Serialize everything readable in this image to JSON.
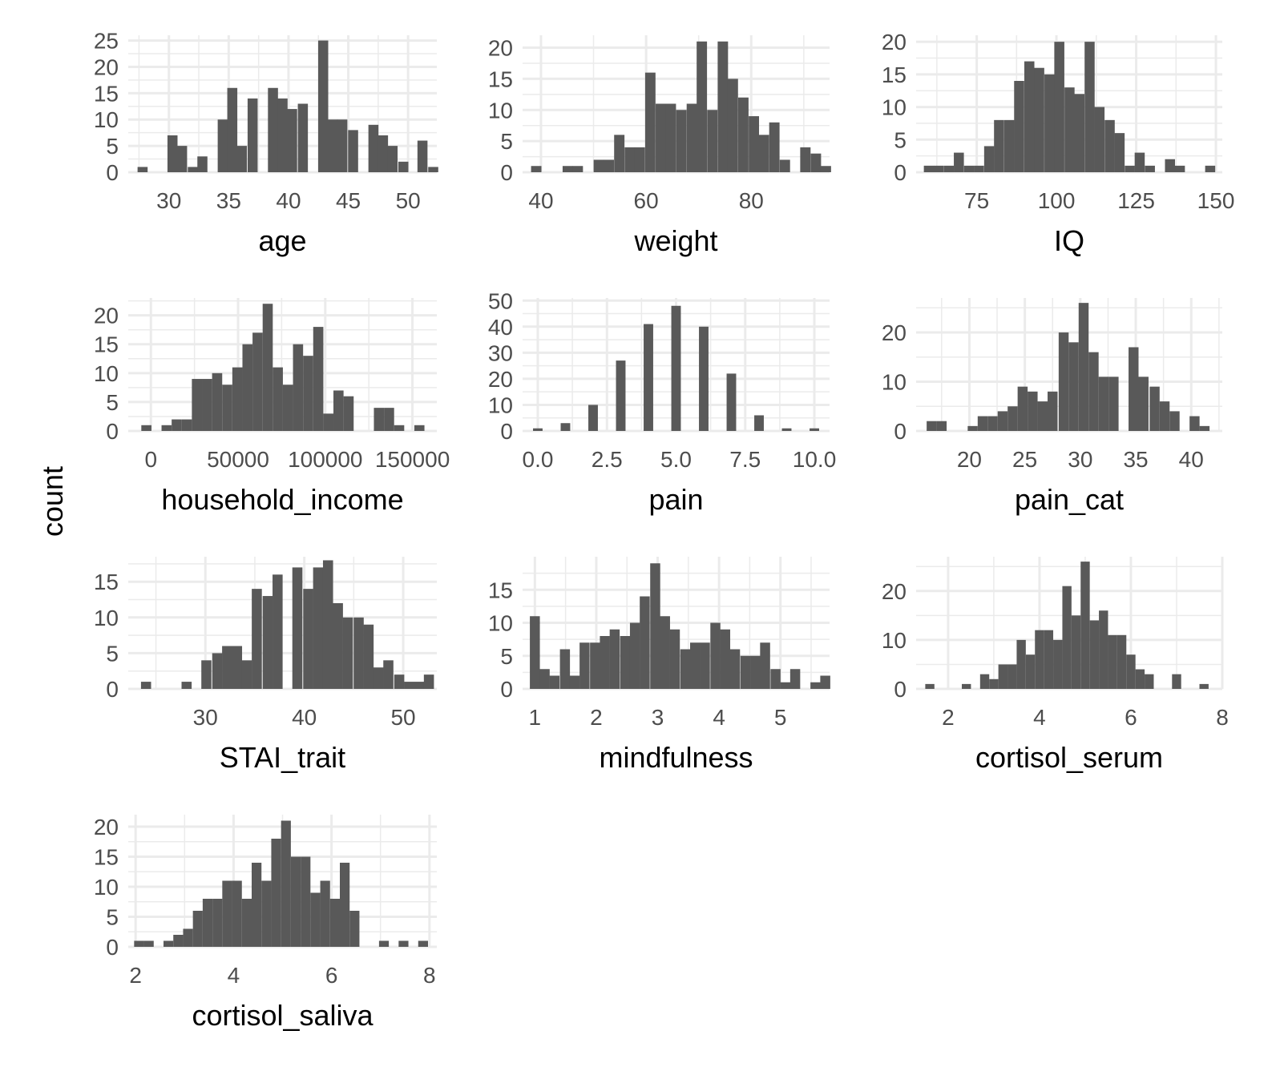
{
  "figure": {
    "ylabel": "count"
  },
  "colors": {
    "bar": "#595959",
    "grid": "#ebebeb",
    "tick_text": "#4d4d4d",
    "title_text": "#000000"
  },
  "chart_data": [
    {
      "type": "bar",
      "xlabel": "age",
      "xlim": [
        26.6,
        52.4
      ],
      "ylim": [
        0,
        26
      ],
      "bin_width": 0.84,
      "x_ticks": [
        30,
        35,
        40,
        45,
        50
      ],
      "x_tick_labels": [
        "30",
        "35",
        "40",
        "45",
        "50"
      ],
      "y_ticks": [
        0,
        5,
        10,
        15,
        20,
        25
      ],
      "y_tick_labels": [
        "0",
        "5",
        "10",
        "15",
        "20",
        "25"
      ],
      "bins": [
        [
          27.8,
          1
        ],
        [
          28.6,
          0
        ],
        [
          29.4,
          0
        ],
        [
          30.3,
          7
        ],
        [
          31.1,
          5
        ],
        [
          32.0,
          1
        ],
        [
          32.8,
          3
        ],
        [
          33.6,
          0
        ],
        [
          34.5,
          10
        ],
        [
          35.3,
          16
        ],
        [
          36.1,
          5
        ],
        [
          37.0,
          14
        ],
        [
          37.8,
          0
        ],
        [
          38.7,
          16
        ],
        [
          39.5,
          14
        ],
        [
          40.3,
          12
        ],
        [
          41.2,
          13
        ],
        [
          42.0,
          0
        ],
        [
          42.9,
          25
        ],
        [
          43.7,
          10
        ],
        [
          44.5,
          10
        ],
        [
          45.4,
          8
        ],
        [
          46.2,
          0
        ],
        [
          47.1,
          9
        ],
        [
          47.9,
          7
        ],
        [
          48.7,
          5
        ],
        [
          49.6,
          2
        ],
        [
          50.4,
          0
        ],
        [
          51.2,
          6
        ],
        [
          52.1,
          1
        ]
      ]
    },
    {
      "type": "bar",
      "xlabel": "weight",
      "xlim": [
        36.5,
        94.9
      ],
      "ylim": [
        0,
        22
      ],
      "bin_width": 1.97,
      "x_ticks": [
        40,
        60,
        80
      ],
      "x_tick_labels": [
        "40",
        "60",
        "80"
      ],
      "y_ticks": [
        0,
        5,
        10,
        15,
        20
      ],
      "y_tick_labels": [
        "0",
        "5",
        "10",
        "15",
        "20"
      ],
      "bins": [
        [
          39.1,
          1
        ],
        [
          41.1,
          0
        ],
        [
          43.1,
          0
        ],
        [
          45.1,
          1
        ],
        [
          47.0,
          1
        ],
        [
          49.0,
          0
        ],
        [
          51.0,
          2
        ],
        [
          52.9,
          2
        ],
        [
          54.9,
          6
        ],
        [
          56.9,
          4
        ],
        [
          58.8,
          4
        ],
        [
          60.8,
          16
        ],
        [
          62.8,
          11
        ],
        [
          64.7,
          11
        ],
        [
          66.7,
          10
        ],
        [
          68.7,
          11
        ],
        [
          70.6,
          21
        ],
        [
          72.6,
          10
        ],
        [
          74.6,
          21
        ],
        [
          76.5,
          15
        ],
        [
          78.5,
          12
        ],
        [
          80.5,
          9
        ],
        [
          82.4,
          6
        ],
        [
          84.4,
          8
        ],
        [
          86.4,
          2
        ],
        [
          88.3,
          0
        ],
        [
          90.3,
          4
        ],
        [
          92.3,
          3
        ],
        [
          94.2,
          1
        ]
      ]
    },
    {
      "type": "bar",
      "xlabel": "IQ",
      "xlim": [
        56,
        152
      ],
      "ylim": [
        0,
        21
      ],
      "bin_width": 3.15,
      "x_ticks": [
        75,
        100,
        125,
        150
      ],
      "x_tick_labels": [
        "75",
        "100",
        "125",
        "150"
      ],
      "y_ticks": [
        0,
        5,
        10,
        15,
        20
      ],
      "y_tick_labels": [
        "0",
        "5",
        "10",
        "15",
        "20"
      ],
      "bins": [
        [
          60,
          1
        ],
        [
          63.1,
          1
        ],
        [
          66.3,
          1
        ],
        [
          69.4,
          3
        ],
        [
          72.6,
          1
        ],
        [
          75.7,
          1
        ],
        [
          78.9,
          4
        ],
        [
          82,
          8
        ],
        [
          85.2,
          8
        ],
        [
          88.3,
          14
        ],
        [
          91.5,
          17
        ],
        [
          94.6,
          16
        ],
        [
          97.8,
          15
        ],
        [
          100.9,
          20
        ],
        [
          104.1,
          13
        ],
        [
          107.2,
          12
        ],
        [
          110.4,
          20
        ],
        [
          113.5,
          10
        ],
        [
          116.7,
          8
        ],
        [
          119.8,
          6
        ],
        [
          123,
          1
        ],
        [
          126.1,
          3
        ],
        [
          129.3,
          1
        ],
        [
          132.4,
          0
        ],
        [
          135.6,
          2
        ],
        [
          138.7,
          1
        ],
        [
          141.9,
          0
        ],
        [
          145,
          0
        ],
        [
          148.2,
          1
        ]
      ]
    },
    {
      "type": "bar",
      "xlabel": "household_income",
      "xlim": [
        -13000,
        164000
      ],
      "ylim": [
        0,
        23
      ],
      "bin_width": 5800,
      "x_ticks": [
        0,
        50000,
        100000,
        150000
      ],
      "x_tick_labels": [
        "0",
        "50000",
        "100000",
        "150000"
      ],
      "y_ticks": [
        0,
        5,
        10,
        15,
        20
      ],
      "y_tick_labels": [
        "0",
        "5",
        "10",
        "15",
        "20"
      ],
      "bins": [
        [
          -2600,
          1
        ],
        [
          3200,
          0
        ],
        [
          9000,
          1
        ],
        [
          14800,
          2
        ],
        [
          20600,
          2
        ],
        [
          26400,
          9
        ],
        [
          32200,
          9
        ],
        [
          38000,
          10
        ],
        [
          43800,
          8
        ],
        [
          49600,
          11
        ],
        [
          55400,
          15
        ],
        [
          61200,
          17
        ],
        [
          67000,
          22
        ],
        [
          72800,
          11
        ],
        [
          78600,
          8
        ],
        [
          84400,
          15
        ],
        [
          90200,
          13
        ],
        [
          96000,
          18
        ],
        [
          101800,
          3
        ],
        [
          107600,
          7
        ],
        [
          113400,
          6
        ],
        [
          119200,
          0
        ],
        [
          125000,
          0
        ],
        [
          130800,
          4
        ],
        [
          136600,
          4
        ],
        [
          142400,
          1
        ],
        [
          148200,
          0
        ],
        [
          154000,
          1
        ]
      ]
    },
    {
      "type": "bar",
      "xlabel": "pain",
      "xlim": [
        -0.55,
        10.55
      ],
      "ylim": [
        0,
        51
      ],
      "bin_width": 0.345,
      "x_ticks": [
        0.0,
        2.5,
        5.0,
        7.5,
        10.0
      ],
      "x_tick_labels": [
        "0.0",
        "2.5",
        "5.0",
        "7.5",
        "10.0"
      ],
      "y_ticks": [
        0,
        10,
        20,
        30,
        40,
        50
      ],
      "y_tick_labels": [
        "0",
        "10",
        "20",
        "30",
        "40",
        "50"
      ],
      "bins": [
        [
          0,
          1
        ],
        [
          1,
          3
        ],
        [
          2,
          10
        ],
        [
          3,
          27
        ],
        [
          4,
          41
        ],
        [
          5,
          48
        ],
        [
          6,
          40
        ],
        [
          7,
          22
        ],
        [
          8,
          6
        ],
        [
          9,
          1
        ],
        [
          10,
          1
        ]
      ]
    },
    {
      "type": "bar",
      "xlabel": "pain_cat",
      "xlim": [
        15.2,
        42.8
      ],
      "ylim": [
        0,
        27
      ],
      "bin_width": 0.9,
      "x_ticks": [
        20,
        25,
        30,
        35,
        40
      ],
      "x_tick_labels": [
        "20",
        "25",
        "30",
        "35",
        "40"
      ],
      "y_ticks": [
        0,
        10,
        20
      ],
      "y_tick_labels": [
        "0",
        "10",
        "20"
      ],
      "bins": [
        [
          16.6,
          2
        ],
        [
          17.5,
          2
        ],
        [
          18.4,
          0
        ],
        [
          19.3,
          0
        ],
        [
          20.3,
          1
        ],
        [
          21.2,
          3
        ],
        [
          22.1,
          3
        ],
        [
          23.0,
          4
        ],
        [
          23.9,
          5
        ],
        [
          24.8,
          9
        ],
        [
          25.7,
          8
        ],
        [
          26.6,
          6
        ],
        [
          27.5,
          8
        ],
        [
          28.5,
          20
        ],
        [
          29.4,
          18
        ],
        [
          30.3,
          26
        ],
        [
          31.2,
          16
        ],
        [
          32.1,
          11
        ],
        [
          33.0,
          11
        ],
        [
          33.9,
          0
        ],
        [
          34.8,
          17
        ],
        [
          35.7,
          11
        ],
        [
          36.7,
          9
        ],
        [
          37.6,
          6
        ],
        [
          38.5,
          4
        ],
        [
          39.4,
          0
        ],
        [
          40.3,
          3
        ],
        [
          41.2,
          1
        ]
      ]
    },
    {
      "type": "bar",
      "xlabel": "STAI_trait",
      "xlim": [
        22.2,
        53.4
      ],
      "ylim": [
        0,
        18.5
      ],
      "bin_width": 1.02,
      "x_ticks": [
        30,
        40,
        50
      ],
      "x_tick_labels": [
        "30",
        "40",
        "50"
      ],
      "y_ticks": [
        0,
        5,
        10,
        15
      ],
      "y_tick_labels": [
        "0",
        "5",
        "10",
        "15"
      ],
      "bins": [
        [
          24.0,
          1
        ],
        [
          25.0,
          0
        ],
        [
          26.0,
          0
        ],
        [
          27.1,
          0
        ],
        [
          28.1,
          1
        ],
        [
          29.1,
          0
        ],
        [
          30.1,
          4
        ],
        [
          31.2,
          5
        ],
        [
          32.2,
          6
        ],
        [
          33.2,
          6
        ],
        [
          34.2,
          4
        ],
        [
          35.2,
          14
        ],
        [
          36.3,
          13
        ],
        [
          37.3,
          16
        ],
        [
          38.3,
          0
        ],
        [
          39.3,
          17
        ],
        [
          40.4,
          14
        ],
        [
          41.4,
          17
        ],
        [
          42.4,
          18
        ],
        [
          43.4,
          12
        ],
        [
          44.4,
          10
        ],
        [
          45.5,
          10
        ],
        [
          46.5,
          9
        ],
        [
          47.5,
          3
        ],
        [
          48.5,
          4
        ],
        [
          49.6,
          2
        ],
        [
          50.6,
          1
        ],
        [
          51.6,
          1
        ],
        [
          52.6,
          2
        ]
      ]
    },
    {
      "type": "bar",
      "xlabel": "mindfulness",
      "xlim": [
        0.8,
        5.8
      ],
      "ylim": [
        0,
        20
      ],
      "bin_width": 0.163,
      "x_ticks": [
        1,
        2,
        3,
        4,
        5
      ],
      "x_tick_labels": [
        "1",
        "2",
        "3",
        "4",
        "5"
      ],
      "y_ticks": [
        0,
        5,
        10,
        15
      ],
      "y_tick_labels": [
        "0",
        "5",
        "10",
        "15"
      ],
      "bins": [
        [
          1.0,
          11
        ],
        [
          1.16,
          3
        ],
        [
          1.32,
          2
        ],
        [
          1.49,
          6
        ],
        [
          1.65,
          2
        ],
        [
          1.81,
          7
        ],
        [
          1.98,
          7
        ],
        [
          2.14,
          8
        ],
        [
          2.3,
          9
        ],
        [
          2.47,
          8
        ],
        [
          2.63,
          10
        ],
        [
          2.79,
          14
        ],
        [
          2.96,
          19
        ],
        [
          3.12,
          11
        ],
        [
          3.28,
          9
        ],
        [
          3.45,
          6
        ],
        [
          3.61,
          7
        ],
        [
          3.77,
          7
        ],
        [
          3.94,
          10
        ],
        [
          4.1,
          9
        ],
        [
          4.26,
          6
        ],
        [
          4.43,
          5
        ],
        [
          4.59,
          5
        ],
        [
          4.75,
          7
        ],
        [
          4.92,
          3
        ],
        [
          5.08,
          1
        ],
        [
          5.24,
          3
        ],
        [
          5.41,
          0
        ],
        [
          5.57,
          1
        ],
        [
          5.73,
          2
        ]
      ]
    },
    {
      "type": "bar",
      "xlabel": "cortisol_serum",
      "xlim": [
        1.3,
        8.0
      ],
      "ylim": [
        0,
        27
      ],
      "bin_width": 0.2,
      "x_ticks": [
        2,
        4,
        6,
        8
      ],
      "x_tick_labels": [
        "2",
        "4",
        "6",
        "8"
      ],
      "y_ticks": [
        0,
        10,
        20
      ],
      "y_tick_labels": [
        "0",
        "10",
        "20"
      ],
      "bins": [
        [
          1.6,
          1
        ],
        [
          1.8,
          0
        ],
        [
          2.0,
          0
        ],
        [
          2.2,
          0
        ],
        [
          2.4,
          1
        ],
        [
          2.6,
          0
        ],
        [
          2.8,
          3
        ],
        [
          3.0,
          2
        ],
        [
          3.2,
          5
        ],
        [
          3.4,
          5
        ],
        [
          3.6,
          10
        ],
        [
          3.8,
          7
        ],
        [
          4.0,
          12
        ],
        [
          4.2,
          12
        ],
        [
          4.4,
          10
        ],
        [
          4.6,
          21
        ],
        [
          4.8,
          15
        ],
        [
          5.0,
          26
        ],
        [
          5.2,
          14
        ],
        [
          5.4,
          16
        ],
        [
          5.6,
          11
        ],
        [
          5.8,
          11
        ],
        [
          6.0,
          7
        ],
        [
          6.2,
          4
        ],
        [
          6.4,
          3
        ],
        [
          6.6,
          0
        ],
        [
          6.8,
          0
        ],
        [
          7.0,
          3
        ],
        [
          7.2,
          0
        ],
        [
          7.4,
          0
        ],
        [
          7.6,
          1
        ]
      ]
    },
    {
      "type": "bar",
      "xlabel": "cortisol_saliva",
      "xlim": [
        1.85,
        8.15
      ],
      "ylim": [
        0,
        22
      ],
      "bin_width": 0.2,
      "x_ticks": [
        2,
        4,
        6,
        8
      ],
      "x_tick_labels": [
        "2",
        "4",
        "6",
        "8"
      ],
      "y_ticks": [
        0,
        5,
        10,
        15,
        20
      ],
      "y_tick_labels": [
        "0",
        "5",
        "10",
        "15",
        "20"
      ],
      "bins": [
        [
          2.07,
          1
        ],
        [
          2.27,
          1
        ],
        [
          2.47,
          0
        ],
        [
          2.67,
          1
        ],
        [
          2.87,
          2
        ],
        [
          3.07,
          3
        ],
        [
          3.27,
          6
        ],
        [
          3.47,
          8
        ],
        [
          3.67,
          8
        ],
        [
          3.87,
          11
        ],
        [
          4.07,
          11
        ],
        [
          4.27,
          8
        ],
        [
          4.47,
          14
        ],
        [
          4.67,
          11
        ],
        [
          4.87,
          18
        ],
        [
          5.07,
          21
        ],
        [
          5.27,
          15
        ],
        [
          5.47,
          15
        ],
        [
          5.67,
          9
        ],
        [
          5.87,
          11
        ],
        [
          6.07,
          8
        ],
        [
          6.27,
          14
        ],
        [
          6.47,
          6
        ],
        [
          6.67,
          0
        ],
        [
          6.87,
          0
        ],
        [
          7.07,
          1
        ],
        [
          7.27,
          0
        ],
        [
          7.47,
          1
        ],
        [
          7.67,
          0
        ],
        [
          7.87,
          1
        ]
      ]
    }
  ]
}
